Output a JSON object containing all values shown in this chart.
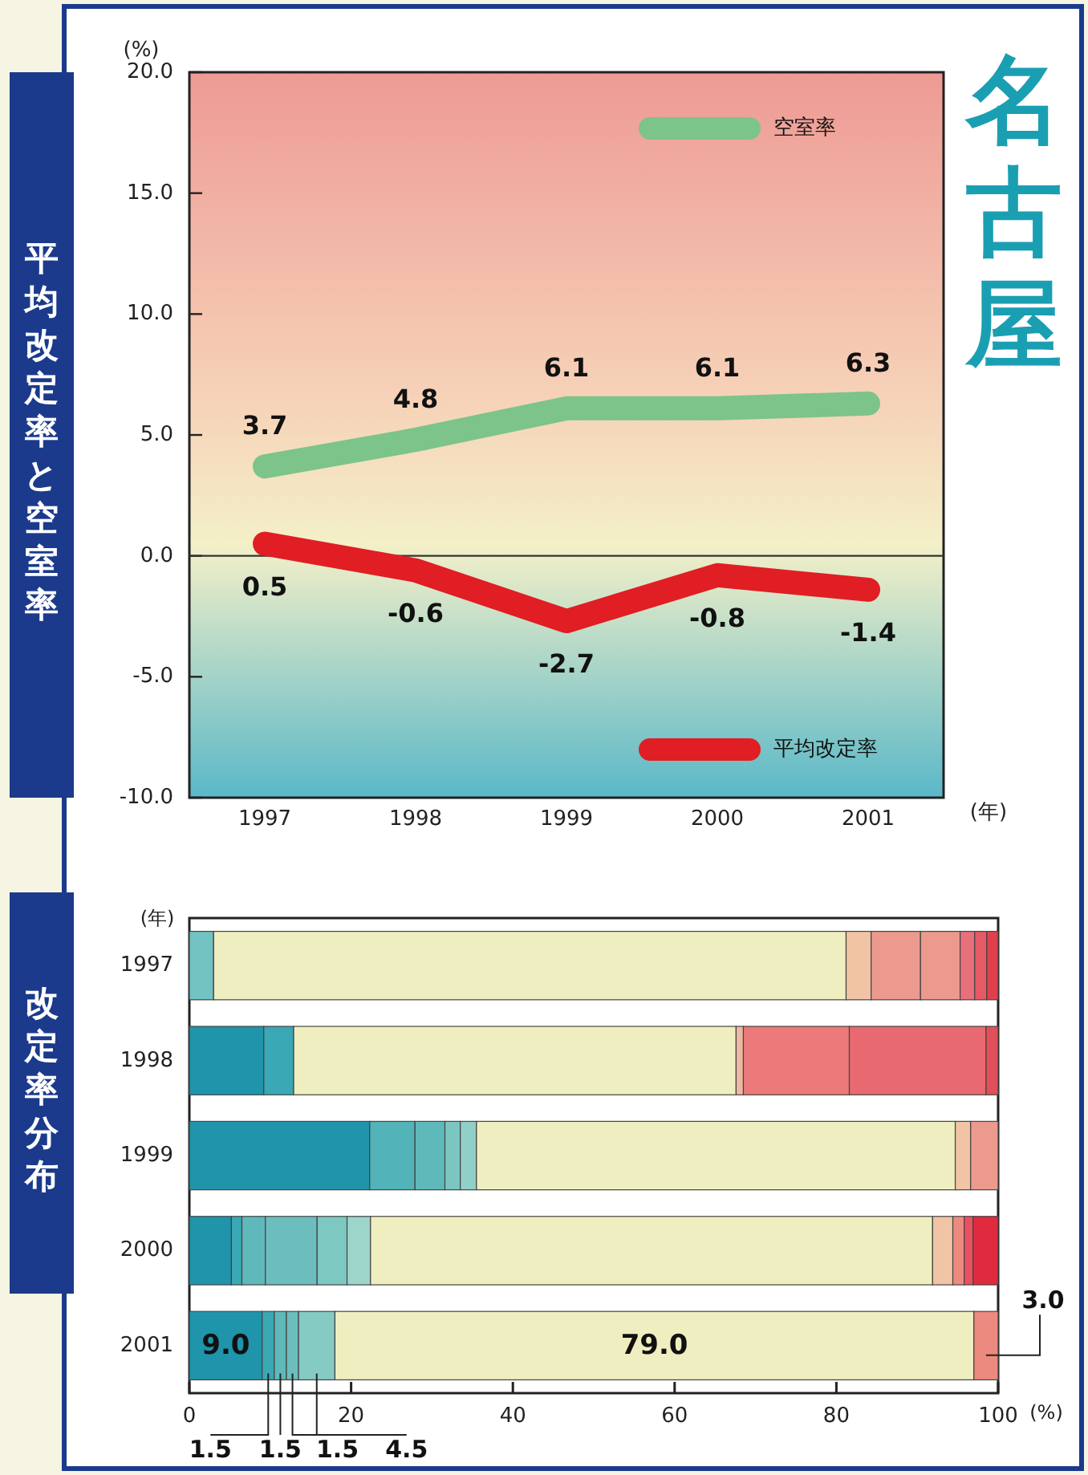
{
  "chart_data": [
    {
      "type": "line",
      "title": "平均改定率と空室率",
      "annotations": [
        "名古屋"
      ],
      "ylabel": "(%)",
      "xlabel": "(年)",
      "categories": [
        "1997",
        "1998",
        "1999",
        "2000",
        "2001"
      ],
      "series": [
        {
          "name": "空室率",
          "color": "#7cc48a",
          "values": [
            3.7,
            4.8,
            6.1,
            6.1,
            6.3
          ]
        },
        {
          "name": "平均改定率",
          "color": "#e01e24",
          "values": [
            0.5,
            -0.6,
            -2.7,
            -0.8,
            -1.4
          ]
        }
      ],
      "ylim": [
        -10,
        20
      ],
      "yticks": [
        {
          "value": -10,
          "label": "-10.0"
        },
        {
          "value": -5,
          "label": "-5.0"
        },
        {
          "value": 0,
          "label": "0.0"
        },
        {
          "value": 5,
          "label": "5.0"
        },
        {
          "value": 10,
          "label": "10.0"
        },
        {
          "value": 15,
          "label": "15.0"
        },
        {
          "value": 20,
          "label": "20.0"
        }
      ],
      "ref_lines": [
        {
          "axis": "y",
          "value": 0,
          "color": "#333333"
        }
      ],
      "data_labels": true,
      "legend": "right",
      "line_style": "solid"
    },
    {
      "type": "bar",
      "orientation": "horizontal",
      "stacked": true,
      "title": "改定率分布",
      "ylabel": "(年)",
      "xlabel": "(%)",
      "categories": [
        "1997",
        "1998",
        "1999",
        "2000",
        "2001"
      ],
      "series": [
        {
          "colors": [
            "#72c3c2",
            "#1f94aa",
            "#1f94aa",
            "#1f94aa",
            "#1f94aa"
          ],
          "values": [
            3.0,
            9.2,
            22.3,
            5.2,
            9.0
          ],
          "value_labels": [
            null,
            null,
            null,
            null,
            "9.0"
          ]
        },
        {
          "colors": [
            null,
            "#3aa8b5",
            "#52b3b8",
            "#3aa8b5",
            "#3aa8b5"
          ],
          "values": [
            null,
            3.7,
            5.6,
            1.3,
            1.5
          ],
          "value_labels": [
            null,
            null,
            null,
            null,
            "1.5"
          ]
        },
        {
          "colors": [
            null,
            null,
            "#5fb9bb",
            "#5fb9bb",
            "#5fb9bb"
          ],
          "values": [
            null,
            null,
            3.7,
            2.9,
            1.5
          ],
          "value_labels": [
            null,
            null,
            null,
            null,
            "1.5"
          ]
        },
        {
          "colors": [
            null,
            null,
            "#7cc6c2",
            "#6cbdbe",
            "#6cbdbe"
          ],
          "values": [
            null,
            null,
            1.9,
            6.4,
            1.5
          ],
          "value_labels": [
            null,
            null,
            null,
            null,
            "1.5"
          ]
        },
        {
          "colors": [
            null,
            null,
            "#90d0c8",
            "#7ec8c2",
            "#86cbc3"
          ],
          "values": [
            null,
            null,
            2.0,
            3.7,
            4.5
          ],
          "value_labels": [
            null,
            null,
            null,
            null,
            "4.5"
          ]
        },
        {
          "colors": [
            null,
            null,
            null,
            "#9dd5cb",
            null
          ],
          "values": [
            null,
            null,
            null,
            2.9,
            null
          ]
        },
        {
          "colors": [
            "#efeec0",
            "#efeec0",
            "#efeec0",
            "#efeec0",
            "#efeec0"
          ],
          "values": [
            78.2,
            54.7,
            59.2,
            69.5,
            79.0
          ],
          "value_labels": [
            null,
            null,
            null,
            null,
            "79.0"
          ]
        },
        {
          "colors": [
            "#f0c4a4",
            "#f0b8a0",
            "#f0c4a4",
            "#f0c4a4",
            null
          ],
          "values": [
            3.1,
            0.9,
            1.9,
            2.5,
            null
          ]
        },
        {
          "colors": [
            "#ec9a8e",
            "#ec7a7a",
            "#ec9a8e",
            "#ec8a80",
            "#ec8a80"
          ],
          "values": [
            6.1,
            13.1,
            3.4,
            1.4,
            3.0
          ],
          "value_labels": [
            null,
            null,
            null,
            null,
            "3.0"
          ]
        },
        {
          "colors": [
            "#ec9a8e",
            "#e86a70",
            null,
            "#e85060",
            null
          ],
          "values": [
            4.9,
            16.9,
            null,
            1.1,
            null
          ]
        },
        {
          "colors": [
            "#e8707a",
            "#e0505a",
            null,
            "#e02a40",
            null
          ],
          "values": [
            1.8,
            1.5,
            null,
            3.1,
            null
          ]
        },
        {
          "colors": [
            "#e65a66",
            null,
            null,
            null,
            null
          ],
          "values": [
            1.5,
            null,
            null,
            null,
            null
          ]
        },
        {
          "colors": [
            "#e0404e",
            null,
            null,
            null,
            null
          ],
          "values": [
            1.4,
            null,
            null,
            null,
            null
          ]
        }
      ],
      "xlim": [
        0,
        100
      ],
      "xticks": [
        0,
        20,
        40,
        60,
        80,
        100
      ]
    }
  ]
}
